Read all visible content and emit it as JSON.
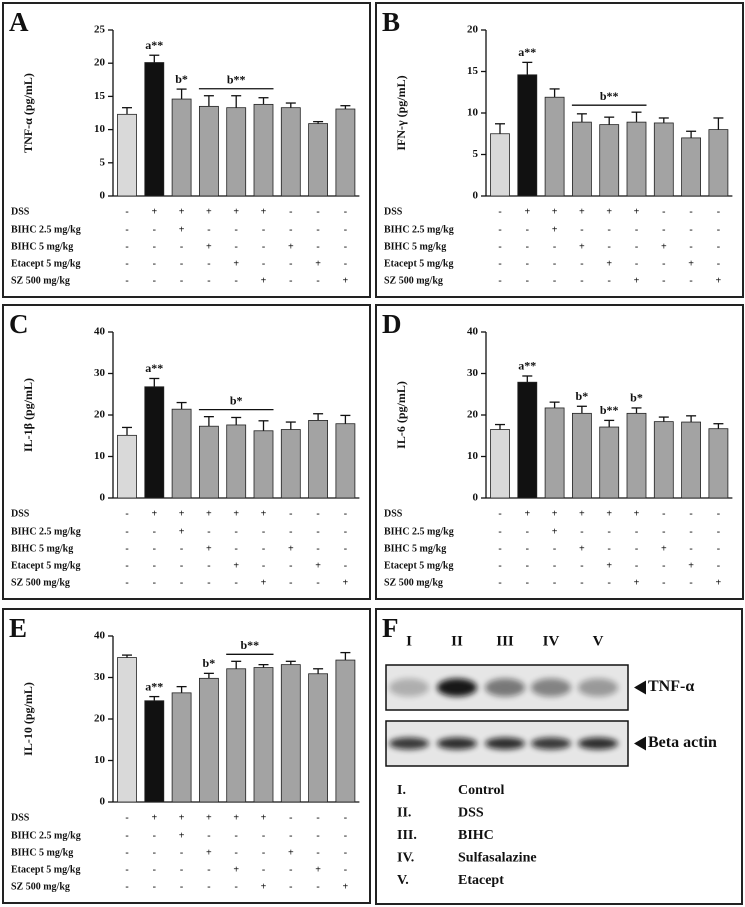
{
  "chart_data": [
    {
      "panel": "A",
      "type": "bar",
      "y_label": "TNF-α (pg/mL)",
      "categories": [
        null,
        null,
        null,
        null,
        null,
        null,
        null,
        null,
        null
      ],
      "values": [
        12.3,
        20.1,
        14.6,
        13.5,
        13.3,
        13.8,
        13.3,
        10.9,
        13.1
      ],
      "errors": [
        1.0,
        1.1,
        1.5,
        1.6,
        1.8,
        1.0,
        0.7,
        0.3,
        0.5
      ],
      "bar_colors": [
        "#d9d9d9",
        "#111111",
        "#a3a3a3",
        "#a3a3a3",
        "#a3a3a3",
        "#a3a3a3",
        "#a3a3a3",
        "#a3a3a3",
        "#a3a3a3"
      ],
      "ylim": [
        0,
        25
      ],
      "yticks": [
        0,
        5,
        10,
        15,
        20,
        25
      ],
      "annotations": [
        {
          "text": "a**",
          "bar": 1
        },
        {
          "text": "b*",
          "bar": 2
        },
        {
          "text": "b**",
          "bars": [
            3,
            5
          ]
        }
      ]
    },
    {
      "panel": "B",
      "type": "bar",
      "y_label": "IFN-γ (pg/mL)",
      "categories": [
        null,
        null,
        null,
        null,
        null,
        null,
        null,
        null,
        null
      ],
      "values": [
        7.5,
        14.6,
        11.9,
        8.9,
        8.6,
        8.9,
        8.8,
        7.0,
        8.0
      ],
      "errors": [
        1.2,
        1.5,
        1.0,
        1.0,
        0.9,
        1.2,
        0.6,
        0.8,
        1.4
      ],
      "bar_colors": [
        "#d9d9d9",
        "#111111",
        "#a3a3a3",
        "#a3a3a3",
        "#a3a3a3",
        "#a3a3a3",
        "#a3a3a3",
        "#a3a3a3",
        "#a3a3a3"
      ],
      "ylim": [
        0,
        20
      ],
      "yticks": [
        0,
        5,
        10,
        15,
        20
      ],
      "annotations": [
        {
          "text": "a**",
          "bar": 1
        },
        {
          "text": "b**",
          "bars": [
            3,
            5
          ]
        }
      ]
    },
    {
      "panel": "C",
      "type": "bar",
      "y_label": "IL-1β (pg/mL)",
      "categories": [
        null,
        null,
        null,
        null,
        null,
        null,
        null,
        null,
        null
      ],
      "values": [
        15.1,
        26.8,
        21.4,
        17.3,
        17.6,
        16.2,
        16.5,
        18.7,
        17.9
      ],
      "errors": [
        1.9,
        2.0,
        1.6,
        2.3,
        1.8,
        2.4,
        1.8,
        1.6,
        2.0
      ],
      "bar_colors": [
        "#d9d9d9",
        "#111111",
        "#a3a3a3",
        "#a3a3a3",
        "#a3a3a3",
        "#a3a3a3",
        "#a3a3a3",
        "#a3a3a3",
        "#a3a3a3"
      ],
      "ylim": [
        0,
        40
      ],
      "yticks": [
        0,
        10,
        20,
        30,
        40
      ],
      "annotations": [
        {
          "text": "a**",
          "bar": 1
        },
        {
          "text": "b*",
          "bars": [
            3,
            5
          ]
        }
      ]
    },
    {
      "panel": "D",
      "type": "bar",
      "y_label": "IL-6 (pg/mL)",
      "categories": [
        null,
        null,
        null,
        null,
        null,
        null,
        null,
        null,
        null
      ],
      "values": [
        16.5,
        27.9,
        21.7,
        20.4,
        17.1,
        20.4,
        18.4,
        18.3,
        16.7
      ],
      "errors": [
        1.2,
        1.5,
        1.4,
        1.7,
        1.6,
        1.3,
        1.1,
        1.5,
        1.2
      ],
      "bar_colors": [
        "#d9d9d9",
        "#111111",
        "#a3a3a3",
        "#a3a3a3",
        "#a3a3a3",
        "#a3a3a3",
        "#a3a3a3",
        "#a3a3a3",
        "#a3a3a3"
      ],
      "ylim": [
        0,
        40
      ],
      "yticks": [
        0,
        10,
        20,
        30,
        40
      ],
      "annotations": [
        {
          "text": "a**",
          "bar": 1
        },
        {
          "text": "b*",
          "bar": 3
        },
        {
          "text": "b**",
          "bar": 4
        },
        {
          "text": "b*",
          "bar": 5
        }
      ]
    },
    {
      "panel": "E",
      "type": "bar",
      "y_label": "IL-10 (pg/mL)",
      "categories": [
        null,
        null,
        null,
        null,
        null,
        null,
        null,
        null,
        null
      ],
      "values": [
        34.8,
        24.4,
        26.3,
        29.8,
        32.1,
        32.4,
        33.1,
        30.9,
        34.2
      ],
      "errors": [
        0.6,
        1.0,
        1.5,
        1.2,
        1.8,
        0.7,
        0.8,
        1.2,
        1.8
      ],
      "bar_colors": [
        "#d9d9d9",
        "#111111",
        "#a3a3a3",
        "#a3a3a3",
        "#a3a3a3",
        "#a3a3a3",
        "#a3a3a3",
        "#a3a3a3",
        "#a3a3a3"
      ],
      "ylim": [
        0,
        40
      ],
      "yticks": [
        0,
        10,
        20,
        30,
        40
      ],
      "annotations": [
        {
          "text": "a**",
          "bar": 1
        },
        {
          "text": "b*",
          "bar": 3
        },
        {
          "text": "b**",
          "bars": [
            4,
            5
          ]
        }
      ]
    }
  ],
  "treatment_table": [
    {
      "label": "DSS",
      "signs": [
        "-",
        "+",
        "+",
        "+",
        "+",
        "+",
        "-",
        "-",
        "-"
      ]
    },
    {
      "label": "BIHC 2.5 mg/kg",
      "signs": [
        "-",
        "-",
        "+",
        "-",
        "-",
        "-",
        "-",
        "-",
        "-"
      ]
    },
    {
      "label": "BIHC 5 mg/kg",
      "signs": [
        "-",
        "-",
        "-",
        "+",
        "-",
        "-",
        "+",
        "-",
        "-"
      ]
    },
    {
      "label": "Etacept 5 mg/kg",
      "signs": [
        "-",
        "-",
        "-",
        "-",
        "+",
        "-",
        "-",
        "+",
        "-"
      ]
    },
    {
      "label": "SZ 500 mg/kg",
      "signs": [
        "-",
        "-",
        "-",
        "-",
        "-",
        "+",
        "-",
        "-",
        "+"
      ]
    }
  ],
  "blot": {
    "panel": "F",
    "lanes": [
      "I",
      "II",
      "III",
      "IV",
      "V"
    ],
    "bands": [
      "TNF-α",
      "Beta actin"
    ],
    "legend": [
      {
        "numeral": "I.",
        "label": "Control"
      },
      {
        "numeral": "II.",
        "label": "DSS"
      },
      {
        "numeral": "III.",
        "label": "BIHC"
      },
      {
        "numeral": "IV.",
        "label": "Sulfasalazine"
      },
      {
        "numeral": "V.",
        "label": "Etacept"
      }
    ]
  }
}
